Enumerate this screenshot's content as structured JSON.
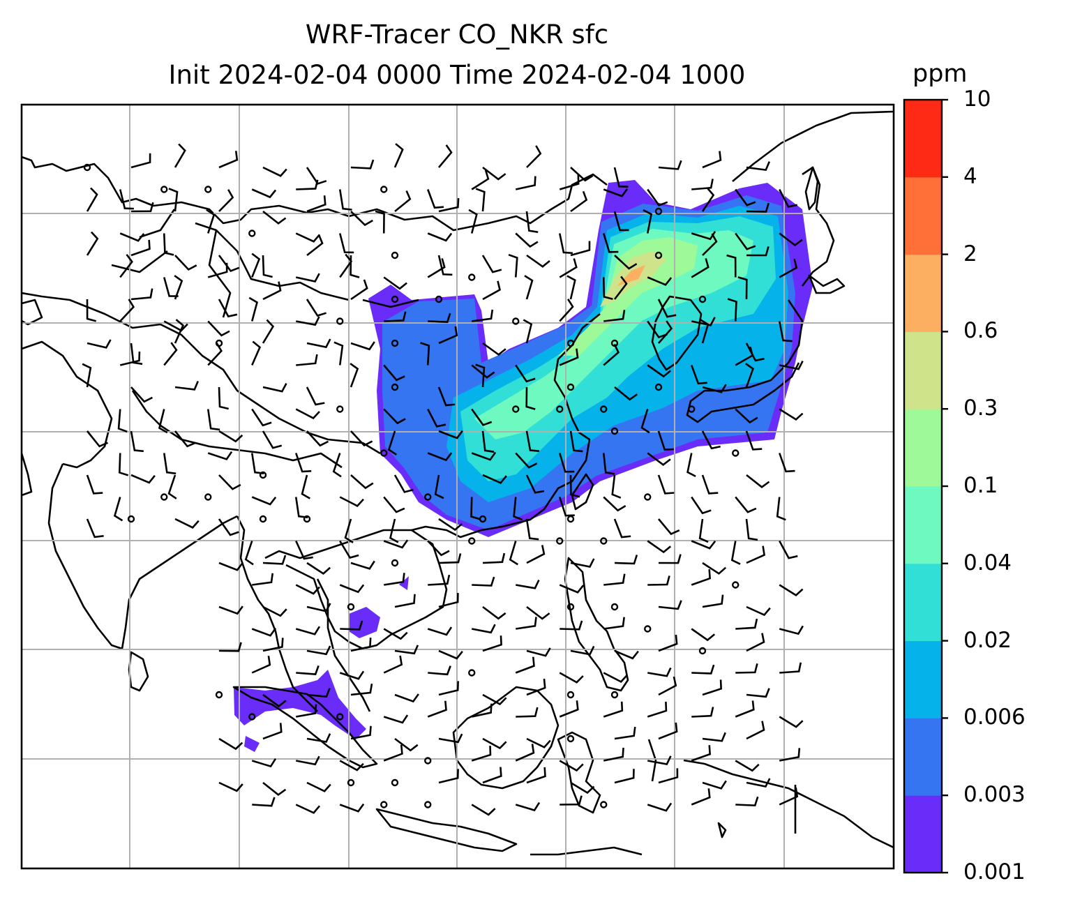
{
  "title": {
    "line1": "WRF-Tracer CO_NKR sfc",
    "line2": "Init 2024-02-04 0000 Time 2024-02-04 1000"
  },
  "colorbar": {
    "unit": "ppm",
    "levels": [
      "0.001",
      "0.003",
      "0.006",
      "0.02",
      "0.04",
      "0.1",
      "0.3",
      "0.6",
      "2",
      "4",
      "10"
    ],
    "colors": [
      "#6a2cf8",
      "#3575f2",
      "#06b2ea",
      "#31dfd7",
      "#6ef9c0",
      "#9efa99",
      "#cee38a",
      "#fcaf61",
      "#ff7038",
      "#ff2a15"
    ]
  },
  "map": {
    "variable": "CO_NKR tracer concentration",
    "grid": "on",
    "overlay": "wind barbs",
    "background_color": "#ffffff",
    "coastline_color": "#000000",
    "grid_color": "#b0b0b0"
  }
}
